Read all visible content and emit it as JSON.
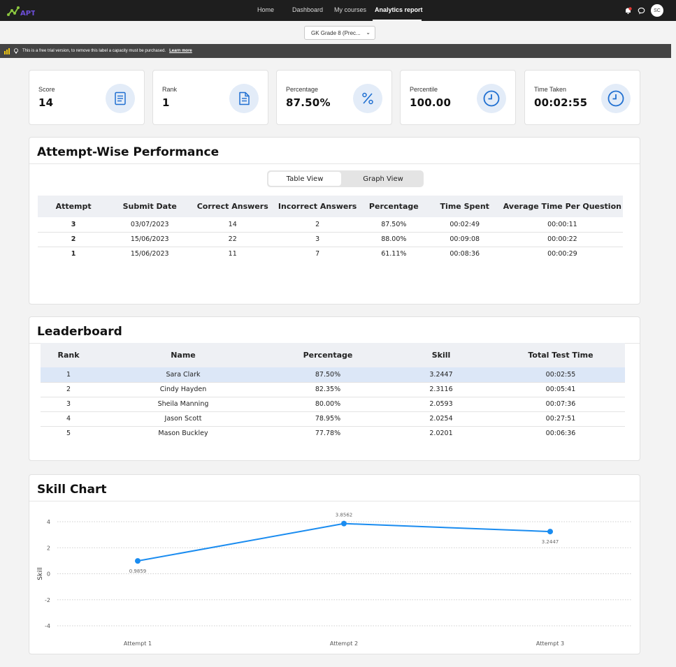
{
  "nav": {
    "logo_text": "APT",
    "items": [
      "Home",
      "Dashboard",
      "My courses",
      "Analytics report"
    ],
    "active": "Analytics report",
    "avatar_initials": "SC"
  },
  "course_select": {
    "value": "GK Grade 8 (Prec..."
  },
  "trial_banner": {
    "message": "This is a free trial version, to remove this label a capacity must be purchased.",
    "link": "Learn more"
  },
  "kpis": [
    {
      "label": "Score",
      "value": "14",
      "icon": "document-lines-icon"
    },
    {
      "label": "Rank",
      "value": "1",
      "icon": "file-text-icon"
    },
    {
      "label": "Percentage",
      "value": "87.50%",
      "icon": "percent-icon"
    },
    {
      "label": "Percentile",
      "value": "100.00",
      "icon": "clock-icon"
    },
    {
      "label": "Time Taken",
      "value": "00:02:55",
      "icon": "clock-icon"
    }
  ],
  "attempts": {
    "title": "Attempt-Wise Performance",
    "views": [
      "Table View",
      "Graph View"
    ],
    "active_view": "Table View",
    "columns": [
      "Attempt",
      "Submit Date",
      "Correct Answers",
      "Incorrect Answers",
      "Percentage",
      "Time Spent",
      "Average Time Per Question"
    ],
    "rows": [
      [
        "3",
        "03/07/2023",
        "14",
        "2",
        "87.50%",
        "00:02:49",
        "00:00:11"
      ],
      [
        "2",
        "15/06/2023",
        "22",
        "3",
        "88.00%",
        "00:09:08",
        "00:00:22"
      ],
      [
        "1",
        "15/06/2023",
        "11",
        "7",
        "61.11%",
        "00:08:36",
        "00:00:29"
      ]
    ]
  },
  "leaderboard": {
    "title": "Leaderboard",
    "columns": [
      "Rank",
      "Name",
      "Percentage",
      "Skill",
      "Total Test Time"
    ],
    "rows": [
      [
        "1",
        "Sara Clark",
        "87.50%",
        "3.2447",
        "00:02:55"
      ],
      [
        "2",
        "Cindy Hayden",
        "82.35%",
        "2.3116",
        "00:05:41"
      ],
      [
        "3",
        "Sheila Manning",
        "80.00%",
        "2.0593",
        "00:07:36"
      ],
      [
        "4",
        "Jason Scott",
        "78.95%",
        "2.0254",
        "00:27:51"
      ],
      [
        "5",
        "Mason Buckley",
        "77.78%",
        "2.0201",
        "00:06:36"
      ]
    ],
    "highlighted_rank": "1"
  },
  "skill_chart": {
    "title": "Skill Chart",
    "colors": {
      "line": "#1a8cf0",
      "grid": "#cfcfcf"
    }
  },
  "chart_data": {
    "type": "line",
    "categories": [
      "Attempt 1",
      "Attempt 2",
      "Attempt 3"
    ],
    "values": [
      0.9859,
      3.8562,
      3.2447
    ],
    "data_labels": [
      "0.9859",
      "3.8562",
      "3.2447"
    ],
    "ylabel": "Skill",
    "yticks": [
      4,
      2,
      0,
      -2,
      -4
    ],
    "ylim": [
      -4,
      4
    ],
    "grid": true
  }
}
